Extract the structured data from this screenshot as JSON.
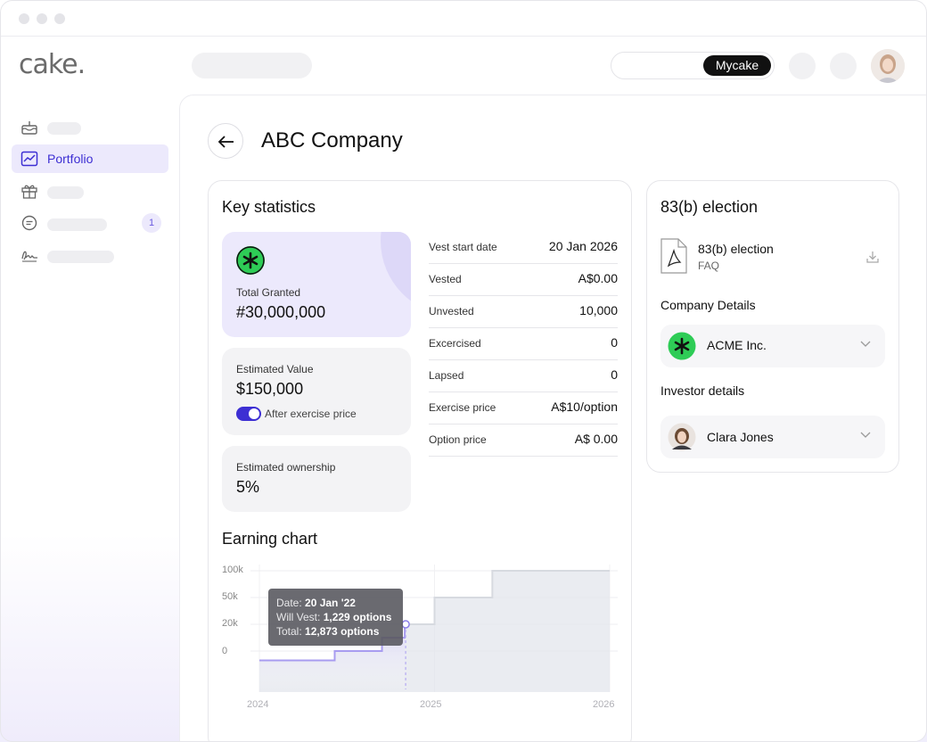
{
  "app": {
    "logo": "cake."
  },
  "topbar": {
    "mode_active": "Mycake"
  },
  "sidebar": {
    "items": [
      {
        "icon": "cake-icon",
        "label": "",
        "active": false
      },
      {
        "icon": "chart-icon",
        "label": "Portfolio",
        "active": true
      },
      {
        "icon": "gift-icon",
        "label": "",
        "active": false
      },
      {
        "icon": "chat-icon",
        "label": "",
        "badge": "1",
        "active": false
      },
      {
        "icon": "signature-icon",
        "label": "",
        "active": false
      }
    ]
  },
  "page": {
    "title": "ABC Company"
  },
  "key_statistics": {
    "title": "Key statistics",
    "total_granted": {
      "label": "Total Granted",
      "value": "#30,000,000"
    },
    "estimated_value": {
      "label": "Estimated Value",
      "value": "$150,000",
      "toggle_label": "After exercise price",
      "toggle_on": true
    },
    "estimated_ownership": {
      "label": "Estimated ownership",
      "value": "5%"
    },
    "rows": [
      {
        "label": "Vest start date",
        "value": "20 Jan 2026"
      },
      {
        "label": "Vested",
        "value": "A$0.00"
      },
      {
        "label": "Unvested",
        "value": "10,000"
      },
      {
        "label": "Excercised",
        "value": "0"
      },
      {
        "label": "Lapsed",
        "value": "0"
      },
      {
        "label": "Exercise price",
        "value": "A$10/option"
      },
      {
        "label": "Option price",
        "value": "A$ 0.00"
      }
    ]
  },
  "earning_chart": {
    "title": "Earning chart",
    "tooltip": {
      "date_label": "Date:",
      "date_value": "20 Jan '22",
      "vest_label": "Will Vest:",
      "vest_value": "1,229 options",
      "total_label": "Total:",
      "total_value": "12,873 options"
    }
  },
  "chart_data": {
    "type": "area",
    "title": "Earning chart",
    "y_tick_labels": [
      "100k",
      "50k",
      "20k",
      "0"
    ],
    "x_tick_labels": [
      "2024",
      "2025",
      "2026"
    ],
    "series": [
      {
        "x": [
          2024.0,
          2024.43,
          2024.7,
          2024.83,
          2025.0,
          2025.33,
          2026.0
        ],
        "values": [
          -7,
          0,
          10,
          20,
          50,
          100,
          100
        ]
      }
    ],
    "colors": {
      "past_line": "#a89cf0",
      "future_line": "#d7dae0",
      "fill": "#e3e5ec"
    }
  },
  "election": {
    "title": "83(b) election",
    "doc_name": "83(b) election",
    "doc_sub": "FAQ",
    "company_heading": "Company Details",
    "company_name": "ACME Inc.",
    "investor_heading": "Investor details",
    "investor_name": "Clara Jones"
  },
  "colors": {
    "accent": "#3d2fd3",
    "accent_bg": "#ece9fc",
    "brand_green": "#2ecc56"
  }
}
